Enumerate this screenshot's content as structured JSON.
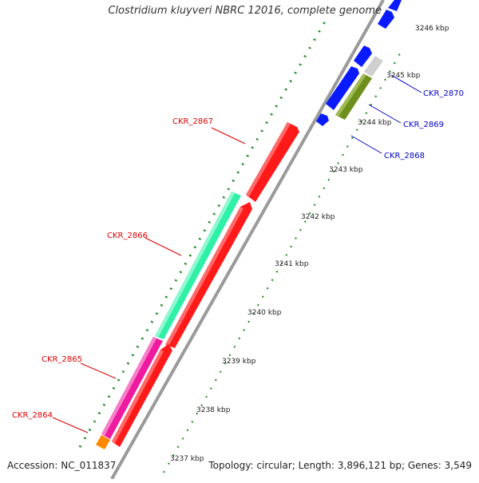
{
  "title": "Clostridium kluyveri NBRC 12016, complete genome",
  "footer": {
    "accession": "Accession: NC_011837",
    "topology": "Topology: circular; Length: 3,896,121 bp; Genes: 3,549"
  },
  "kbp_ticks": [
    "3237 kbp",
    "3238 kbp",
    "3239 kbp",
    "3240 kbp",
    "3241 kbp",
    "3242 kbp",
    "3243 kbp",
    "3244 kbp",
    "3245 kbp",
    "3246 kbp"
  ],
  "gene_labels": [
    {
      "name": "CKR_2864",
      "color": "#dd0000"
    },
    {
      "name": "CKR_2865",
      "color": "#dd0000"
    },
    {
      "name": "CKR_2866",
      "color": "#dd0000"
    },
    {
      "name": "CKR_2867",
      "color": "#dd0000"
    },
    {
      "name": "CKR_2868",
      "color": "#0000cc"
    },
    {
      "name": "CKR_2869",
      "color": "#0000cc"
    },
    {
      "name": "CKR_2870",
      "color": "#0000cc"
    }
  ],
  "colors": {
    "red_gene": "#ff1a1a",
    "green_gene": "#2ef0a6",
    "pink_gene": "#ee1aa0",
    "orange_gene": "#ff8800",
    "blue_gene": "#0a1aff",
    "olive_gene": "#6e8f1c",
    "gray_gene": "#cfcfcf",
    "backbone": "#9a9a9a",
    "tick_dots": "#1a8a1a"
  }
}
